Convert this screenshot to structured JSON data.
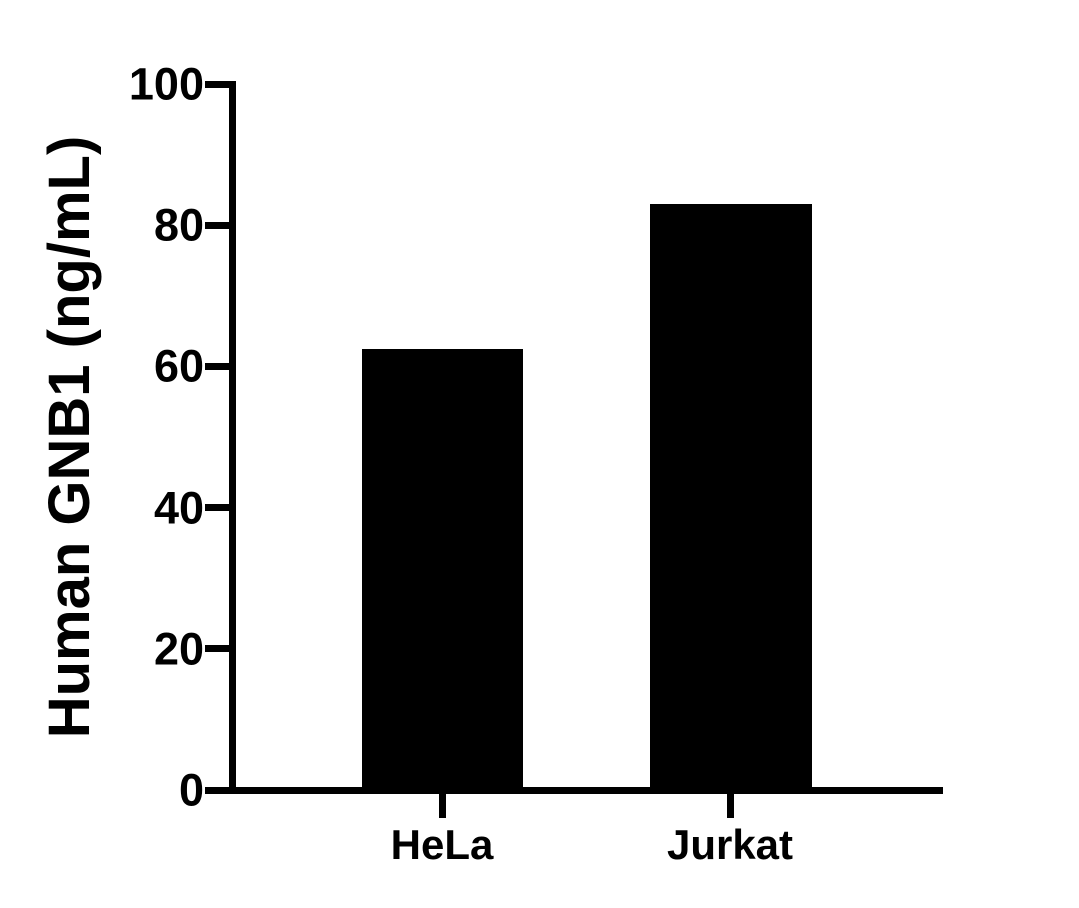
{
  "chart_data": {
    "type": "bar",
    "title": "",
    "ylabel": "Human GNB1 (ng/mL)",
    "xlabel": "",
    "categories": [
      "HeLa",
      "Jurkat"
    ],
    "values": [
      62.4,
      83.0
    ],
    "ylim": [
      0,
      100
    ],
    "yticks": [
      0,
      20,
      40,
      60,
      80,
      100
    ],
    "grid": false,
    "legend": null,
    "bar_color": "#000000",
    "axis_color": "#000000",
    "background_color": "#ffffff"
  }
}
